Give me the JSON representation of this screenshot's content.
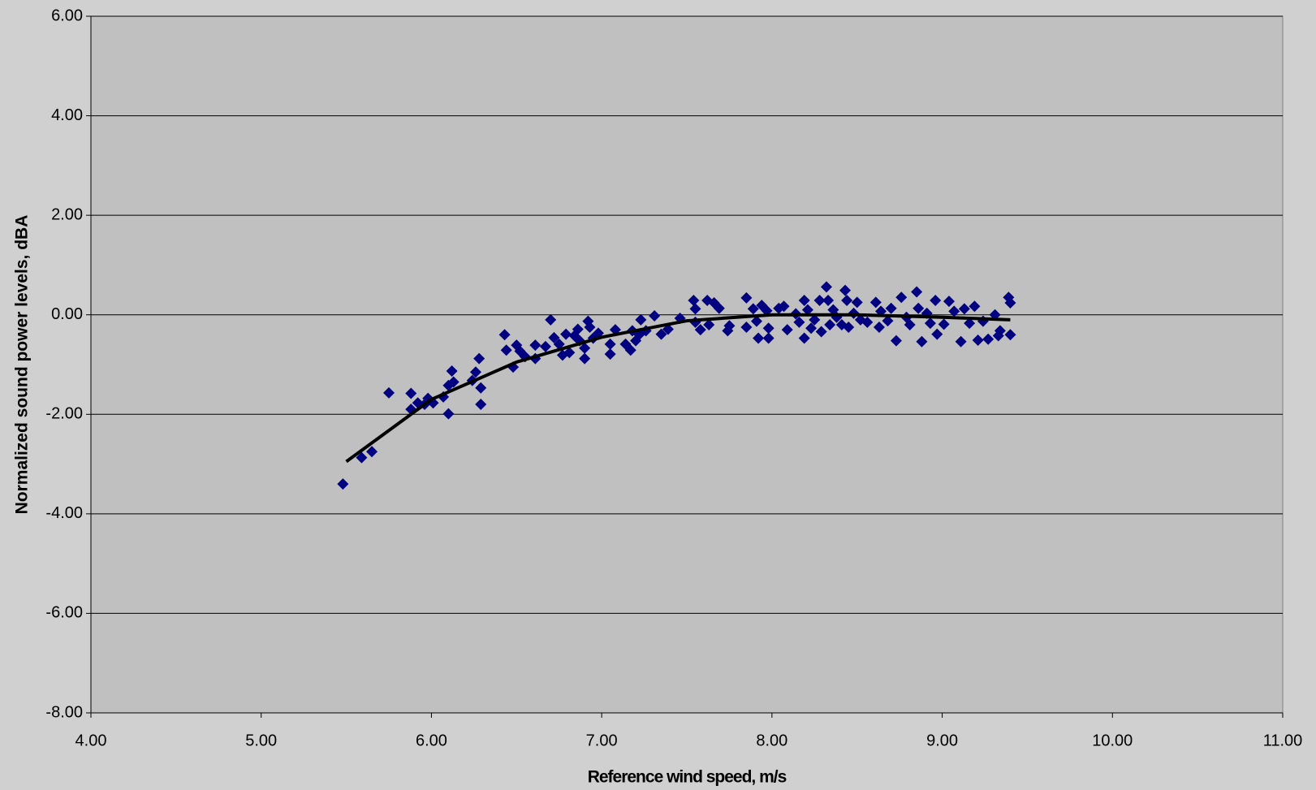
{
  "chart_data": {
    "type": "scatter",
    "xlabel": "Reference wind speed, m/s",
    "ylabel": "Normalized sound power levels, dBA",
    "xlim": [
      4,
      11
    ],
    "ylim": [
      -8,
      6
    ],
    "xticks": [
      {
        "value": 4,
        "label": "4.00"
      },
      {
        "value": 5,
        "label": "5.00"
      },
      {
        "value": 6,
        "label": "6.00"
      },
      {
        "value": 7,
        "label": "7.00"
      },
      {
        "value": 8,
        "label": "8.00"
      },
      {
        "value": 9,
        "label": "9.00"
      },
      {
        "value": 10,
        "label": "10.00"
      },
      {
        "value": 11,
        "label": "11.00"
      }
    ],
    "yticks": [
      {
        "value": -8,
        "label": "-8.00"
      },
      {
        "value": -6,
        "label": "-6.00"
      },
      {
        "value": -4,
        "label": "-4.00"
      },
      {
        "value": -2,
        "label": "-2.00"
      },
      {
        "value": 0,
        "label": "0.00"
      },
      {
        "value": 2,
        "label": "2.00"
      },
      {
        "value": 4,
        "label": "4.00"
      },
      {
        "value": 6,
        "label": "6.00"
      }
    ],
    "grid": true,
    "series": [
      {
        "type": "scatter",
        "color": "#000080",
        "x": [
          5.48,
          5.59,
          5.65,
          5.75,
          5.88,
          5.88,
          5.92,
          5.96,
          5.98,
          6.01,
          6.07,
          6.1,
          6.12,
          6.1,
          6.13,
          6.24,
          6.26,
          6.28,
          6.29,
          6.29,
          6.43,
          6.44,
          6.48,
          6.5,
          6.52,
          6.55,
          6.61,
          6.61,
          6.67,
          6.7,
          6.72,
          6.75,
          6.77,
          6.79,
          6.81,
          6.84,
          6.86,
          6.87,
          6.9,
          6.9,
          6.92,
          6.93,
          6.95,
          6.98,
          7.05,
          7.05,
          7.08,
          7.14,
          7.17,
          7.18,
          7.2,
          7.22,
          7.23,
          7.26,
          7.31,
          7.35,
          7.39,
          7.46,
          7.54,
          7.55,
          7.55,
          7.58,
          7.62,
          7.63,
          7.66,
          7.69,
          7.74,
          7.75,
          7.85,
          7.85,
          7.89,
          7.91,
          7.92,
          7.94,
          7.97,
          7.98,
          7.98,
          8.04,
          8.07,
          8.09,
          8.14,
          8.16,
          8.19,
          8.19,
          8.21,
          8.23,
          8.25,
          8.28,
          8.29,
          8.32,
          8.33,
          8.34,
          8.36,
          8.38,
          8.41,
          8.43,
          8.44,
          8.45,
          8.48,
          8.5,
          8.52,
          8.56,
          8.61,
          8.63,
          8.64,
          8.68,
          8.7,
          8.73,
          8.76,
          8.79,
          8.81,
          8.85,
          8.86,
          8.88,
          8.91,
          8.93,
          8.96,
          8.97,
          9.01,
          9.04,
          9.07,
          9.11,
          9.13,
          9.16,
          9.19,
          9.21,
          9.24,
          9.27,
          9.31,
          9.33,
          9.34,
          9.39,
          9.4,
          9.4
        ],
        "values": [
          -3.4,
          -2.87,
          -2.75,
          -1.57,
          -1.58,
          -1.9,
          -1.77,
          -1.8,
          -1.68,
          -1.77,
          -1.65,
          -1.42,
          -1.13,
          -1.99,
          -1.35,
          -1.32,
          -1.15,
          -0.88,
          -1.47,
          -1.8,
          -0.4,
          -0.71,
          -1.05,
          -0.61,
          -0.73,
          -0.84,
          -0.61,
          -0.88,
          -0.64,
          -0.1,
          -0.46,
          -0.59,
          -0.81,
          -0.39,
          -0.76,
          -0.42,
          -0.29,
          -0.52,
          -0.88,
          -0.67,
          -0.13,
          -0.25,
          -0.47,
          -0.37,
          -0.59,
          -0.79,
          -0.3,
          -0.59,
          -0.71,
          -0.32,
          -0.52,
          -0.4,
          -0.1,
          -0.32,
          -0.02,
          -0.39,
          -0.29,
          -0.07,
          0.29,
          0.12,
          -0.15,
          -0.3,
          0.29,
          -0.2,
          0.24,
          0.13,
          -0.32,
          -0.22,
          0.34,
          -0.25,
          0.12,
          -0.13,
          -0.47,
          0.19,
          0.08,
          -0.27,
          -0.47,
          0.13,
          0.17,
          -0.3,
          0.02,
          -0.15,
          0.29,
          -0.47,
          0.1,
          -0.27,
          -0.1,
          0.29,
          -0.34,
          0.56,
          0.29,
          -0.2,
          0.1,
          -0.05,
          -0.2,
          0.49,
          0.29,
          -0.25,
          0.03,
          0.25,
          -0.1,
          -0.15,
          0.25,
          -0.25,
          0.07,
          -0.12,
          0.13,
          -0.52,
          0.35,
          -0.05,
          -0.2,
          0.46,
          0.13,
          -0.54,
          0.03,
          -0.17,
          0.29,
          -0.39,
          -0.19,
          0.27,
          0.07,
          -0.54,
          0.12,
          -0.17,
          0.17,
          -0.51,
          -0.13,
          -0.49,
          0.0,
          -0.42,
          -0.32,
          0.35,
          -0.4,
          0.24
        ]
      },
      {
        "type": "line",
        "color": "#000000",
        "x": [
          5.5,
          6.0,
          6.5,
          7.0,
          7.5,
          8.0,
          8.5,
          9.0,
          9.4
        ],
        "values": [
          -2.95,
          -1.7,
          -0.95,
          -0.45,
          -0.12,
          0.0,
          0.0,
          -0.05,
          -0.1
        ]
      }
    ]
  }
}
